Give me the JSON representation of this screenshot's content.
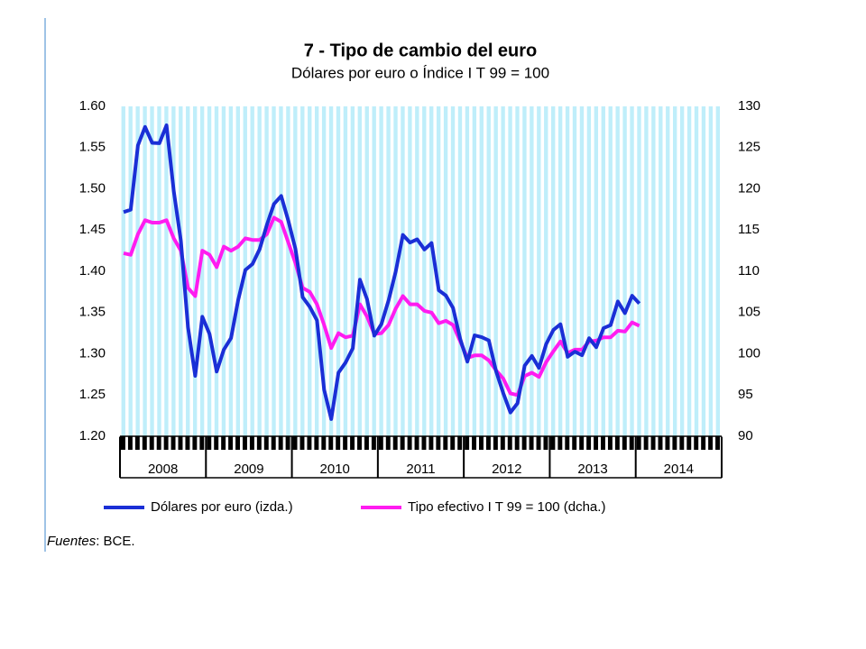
{
  "chart_data": {
    "type": "line",
    "title": "7 - Tipo de cambio del euro",
    "subtitle": "Dólares por euro o Índice I T 99 = 100",
    "year_labels": [
      "2008",
      "2009",
      "2010",
      "2011",
      "2012",
      "2013",
      "2014"
    ],
    "ylim": [
      1.2,
      1.6
    ],
    "yticks": [
      {
        "value": 1.2,
        "label": "1.20"
      },
      1.25,
      {
        "value": 1.3,
        "label": "1.30"
      },
      1.35,
      {
        "value": 1.4,
        "label": "1.40"
      },
      1.45,
      {
        "value": 1.5,
        "label": "1.50"
      },
      1.55,
      {
        "value": 1.6,
        "label": "1.60"
      }
    ],
    "y2lim": [
      90,
      130
    ],
    "y2ticks": [
      90,
      95,
      100,
      105,
      110,
      115,
      120,
      125,
      130
    ],
    "series": [
      {
        "name": "Dólares por euro (izda.)",
        "color": "#1a2fd6",
        "values": [
          1.4718,
          1.4748,
          1.5527,
          1.5751,
          1.5557,
          1.5553,
          1.577,
          1.4975,
          1.437,
          1.3322,
          1.2732,
          1.3449,
          1.3239,
          1.2785,
          1.305,
          1.319,
          1.365,
          1.4016,
          1.4088,
          1.4268,
          1.4562,
          1.4816,
          1.4914,
          1.4614,
          1.4272,
          1.3686,
          1.3569,
          1.3406,
          1.2565,
          1.2209,
          1.277,
          1.2894,
          1.3067,
          1.3898,
          1.3661,
          1.322,
          1.336,
          1.3649,
          1.3999,
          1.4442,
          1.4349,
          1.4388,
          1.4264,
          1.4343,
          1.377,
          1.3706,
          1.3556,
          1.3179,
          1.2905,
          1.3224,
          1.3201,
          1.3162,
          1.2789,
          1.2526,
          1.2288,
          1.24,
          1.2856,
          1.2974,
          1.2828,
          1.3119,
          1.3288,
          1.3359,
          1.2964,
          1.3026,
          1.2982,
          1.3189,
          1.308,
          1.331,
          1.3348,
          1.3635,
          1.3493,
          1.3704,
          1.361
        ]
      },
      {
        "name": "Tipo efectivo I T 99 = 100 (dcha.)",
        "color": "#ff1cf0",
        "axis": "y2",
        "values": [
          112.2,
          112,
          114.5,
          116.2,
          115.9,
          115.9,
          116.2,
          114,
          112.5,
          108,
          107,
          112.5,
          112,
          110.5,
          113,
          112.5,
          113,
          114,
          113.8,
          113.8,
          114.5,
          116.5,
          116,
          113.5,
          111,
          108,
          107.5,
          106,
          103.5,
          100.7,
          102.5,
          102,
          102.2,
          106,
          104.5,
          102.4,
          102.5,
          103.5,
          105.5,
          107,
          106,
          106,
          105.2,
          105,
          103.7,
          104,
          103.5,
          101.5,
          99.5,
          99.8,
          99.8,
          99.2,
          98,
          97,
          95.2,
          95,
          97.3,
          97.7,
          97.2,
          99,
          100.3,
          101.5,
          100.1,
          100.5,
          100.5,
          101.5,
          101.6,
          102,
          102,
          102.8,
          102.7,
          103.8,
          103.4
        ]
      }
    ],
    "source_label": "Fuentes",
    "source_text": ": BCE."
  }
}
